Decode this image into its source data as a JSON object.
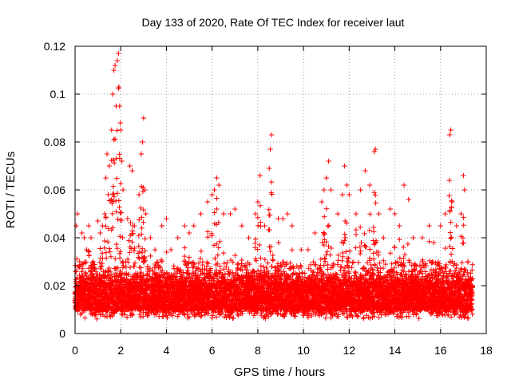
{
  "chart_data": {
    "type": "scatter",
    "title": "Day 133 of 2020, Rate Of TEC Index for receiver laut",
    "xlabel": "GPS time / hours",
    "ylabel": "ROTI / TECUs",
    "xlim": [
      0,
      18
    ],
    "ylim": [
      0,
      0.12
    ],
    "xticks": [
      0,
      2,
      4,
      6,
      8,
      10,
      12,
      14,
      16,
      18
    ],
    "xtick_labels": [
      "0",
      "2",
      "4",
      "6",
      "8",
      "10",
      "12",
      "14",
      "16",
      "18"
    ],
    "yticks": [
      0,
      0.02,
      0.04,
      0.06,
      0.08,
      0.1,
      0.12
    ],
    "ytick_labels": [
      "0",
      "0.02",
      "0.04",
      "0.06",
      "0.08",
      "0.1",
      "0.12"
    ],
    "grid": true,
    "marker": "+",
    "color": "#ff0000",
    "x_range_of_data": [
      0,
      17.4
    ],
    "series": [
      {
        "name": "ROTI",
        "points": [
          [
            0.0,
            0.014
          ],
          [
            0.05,
            0.045
          ],
          [
            0.1,
            0.05
          ],
          [
            0.2,
            0.03
          ],
          [
            0.3,
            0.042
          ],
          [
            0.4,
            0.04
          ],
          [
            0.5,
            0.035
          ],
          [
            0.6,
            0.045
          ],
          [
            0.7,
            0.04
          ],
          [
            0.8,
            0.03
          ],
          [
            1.0,
            0.047
          ],
          [
            1.1,
            0.042
          ],
          [
            1.2,
            0.045
          ],
          [
            1.3,
            0.05
          ],
          [
            1.35,
            0.065
          ],
          [
            1.4,
            0.075
          ],
          [
            1.45,
            0.058
          ],
          [
            1.5,
            0.07
          ],
          [
            1.6,
            0.085
          ],
          [
            1.65,
            0.1
          ],
          [
            1.7,
            0.11
          ],
          [
            1.75,
            0.112
          ],
          [
            1.8,
            0.095
          ],
          [
            1.85,
            0.114
          ],
          [
            1.9,
            0.117
          ],
          [
            1.92,
            0.103
          ],
          [
            1.95,
            0.095
          ],
          [
            1.98,
            0.088
          ],
          [
            2.0,
            0.085
          ],
          [
            2.05,
            0.072
          ],
          [
            2.1,
            0.06
          ],
          [
            2.3,
            0.048
          ],
          [
            2.4,
            0.07
          ],
          [
            2.5,
            0.068
          ],
          [
            2.6,
            0.045
          ],
          [
            2.8,
            0.058
          ],
          [
            2.9,
            0.075
          ],
          [
            2.95,
            0.08
          ],
          [
            3.0,
            0.09
          ],
          [
            3.05,
            0.06
          ],
          [
            3.1,
            0.05
          ],
          [
            3.3,
            0.04
          ],
          [
            3.5,
            0.035
          ],
          [
            3.8,
            0.045
          ],
          [
            4.0,
            0.048
          ],
          [
            4.2,
            0.035
          ],
          [
            4.5,
            0.04
          ],
          [
            4.8,
            0.045
          ],
          [
            5.0,
            0.042
          ],
          [
            5.2,
            0.045
          ],
          [
            5.5,
            0.05
          ],
          [
            5.8,
            0.055
          ],
          [
            6.0,
            0.058
          ],
          [
            6.1,
            0.06
          ],
          [
            6.2,
            0.065
          ],
          [
            6.3,
            0.062
          ],
          [
            6.5,
            0.05
          ],
          [
            6.8,
            0.05
          ],
          [
            7.0,
            0.052
          ],
          [
            7.3,
            0.045
          ],
          [
            7.6,
            0.04
          ],
          [
            7.9,
            0.05
          ],
          [
            8.0,
            0.055
          ],
          [
            8.1,
            0.066
          ],
          [
            8.3,
            0.045
          ],
          [
            8.5,
            0.069
          ],
          [
            8.55,
            0.077
          ],
          [
            8.6,
            0.083
          ],
          [
            8.9,
            0.048
          ],
          [
            9.1,
            0.048
          ],
          [
            9.3,
            0.05
          ],
          [
            9.5,
            0.045
          ],
          [
            9.9,
            0.035
          ],
          [
            10.2,
            0.035
          ],
          [
            10.5,
            0.042
          ],
          [
            10.8,
            0.055
          ],
          [
            10.9,
            0.06
          ],
          [
            11.0,
            0.065
          ],
          [
            11.1,
            0.072
          ],
          [
            11.2,
            0.06
          ],
          [
            11.5,
            0.05
          ],
          [
            11.7,
            0.058
          ],
          [
            11.8,
            0.07
          ],
          [
            11.9,
            0.062
          ],
          [
            12.0,
            0.058
          ],
          [
            12.3,
            0.05
          ],
          [
            12.5,
            0.06
          ],
          [
            12.7,
            0.068
          ],
          [
            12.9,
            0.062
          ],
          [
            13.1,
            0.076
          ],
          [
            13.15,
            0.077
          ],
          [
            13.3,
            0.05
          ],
          [
            13.5,
            0.04
          ],
          [
            13.8,
            0.052
          ],
          [
            14.0,
            0.05
          ],
          [
            14.2,
            0.045
          ],
          [
            14.4,
            0.062
          ],
          [
            14.6,
            0.056
          ],
          [
            14.8,
            0.04
          ],
          [
            15.2,
            0.04
          ],
          [
            15.5,
            0.045
          ],
          [
            15.7,
            0.038
          ],
          [
            16.0,
            0.045
          ],
          [
            16.2,
            0.05
          ],
          [
            16.4,
            0.083
          ],
          [
            16.45,
            0.085
          ],
          [
            16.5,
            0.055
          ],
          [
            16.7,
            0.045
          ],
          [
            16.9,
            0.05
          ],
          [
            17.0,
            0.066
          ],
          [
            17.05,
            0.06
          ],
          [
            17.2,
            0.03
          ],
          [
            17.4,
            0.02
          ]
        ]
      }
    ]
  }
}
